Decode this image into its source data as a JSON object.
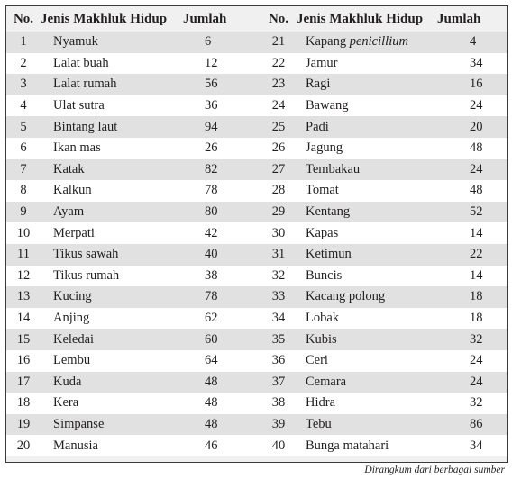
{
  "headers": {
    "no": "No.",
    "name": "Jenis Makhluk Hidup",
    "count": "Jumlah"
  },
  "left_rows": [
    {
      "no": "1",
      "name": "Nyamuk",
      "count": "6"
    },
    {
      "no": "2",
      "name": "Lalat buah",
      "count": "12"
    },
    {
      "no": "3",
      "name": "Lalat rumah",
      "count": "56"
    },
    {
      "no": "4",
      "name": "Ulat sutra",
      "count": "36"
    },
    {
      "no": "5",
      "name": "Bintang laut",
      "count": "94"
    },
    {
      "no": "6",
      "name": "Ikan mas",
      "count": "26"
    },
    {
      "no": "7",
      "name": "Katak",
      "count": "82"
    },
    {
      "no": "8",
      "name": "Kalkun",
      "count": "78"
    },
    {
      "no": "9",
      "name": "Ayam",
      "count": "80"
    },
    {
      "no": "10",
      "name": "Merpati",
      "count": "42"
    },
    {
      "no": "11",
      "name": "Tikus  sawah",
      "count": "40"
    },
    {
      "no": "12",
      "name": "Tikus  rumah",
      "count": "38"
    },
    {
      "no": "13",
      "name": "Kucing",
      "count": "78"
    },
    {
      "no": "14",
      "name": "Anjing",
      "count": "62"
    },
    {
      "no": "15",
      "name": "Keledai",
      "count": "60"
    },
    {
      "no": "16",
      "name": "Lembu",
      "count": "64"
    },
    {
      "no": "17",
      "name": "Kuda",
      "count": "48"
    },
    {
      "no": "18",
      "name": "Kera",
      "count": "48"
    },
    {
      "no": "19",
      "name": "Simpanse",
      "count": "48"
    },
    {
      "no": "20",
      "name": "Manusia",
      "count": "46"
    }
  ],
  "right_rows": [
    {
      "no": "21",
      "name": "Kapang",
      "name_italic": "penicillium",
      "count": "4"
    },
    {
      "no": "22",
      "name": "Jamur",
      "count": "34"
    },
    {
      "no": "23",
      "name": "Ragi",
      "count": "16"
    },
    {
      "no": "24",
      "name": "Bawang",
      "count": "24"
    },
    {
      "no": "25",
      "name": "Padi",
      "count": "20"
    },
    {
      "no": "26",
      "name": "Jagung",
      "count": "48"
    },
    {
      "no": "27",
      "name": "Tembakau",
      "count": "24"
    },
    {
      "no": "28",
      "name": "Tomat",
      "count": "48"
    },
    {
      "no": "29",
      "name": "Kentang",
      "count": "52"
    },
    {
      "no": "30",
      "name": "Kapas",
      "count": "14"
    },
    {
      "no": "31",
      "name": "Ketimun",
      "count": "22"
    },
    {
      "no": "32",
      "name": "Buncis",
      "count": "14"
    },
    {
      "no": "33",
      "name": "Kacang polong",
      "count": "18"
    },
    {
      "no": "34",
      "name": "Lobak",
      "count": "18"
    },
    {
      "no": "35",
      "name": "Kubis",
      "count": "32"
    },
    {
      "no": "36",
      "name": "Ceri",
      "count": "24"
    },
    {
      "no": "37",
      "name": "Cemara",
      "count": "24"
    },
    {
      "no": "38",
      "name": "Hidra",
      "count": "32"
    },
    {
      "no": "39",
      "name": "Tebu",
      "count": "86"
    },
    {
      "no": "40",
      "name": "Bunga matahari",
      "count": "34"
    }
  ],
  "caption": "Dirangkum dari berbagai sumber"
}
